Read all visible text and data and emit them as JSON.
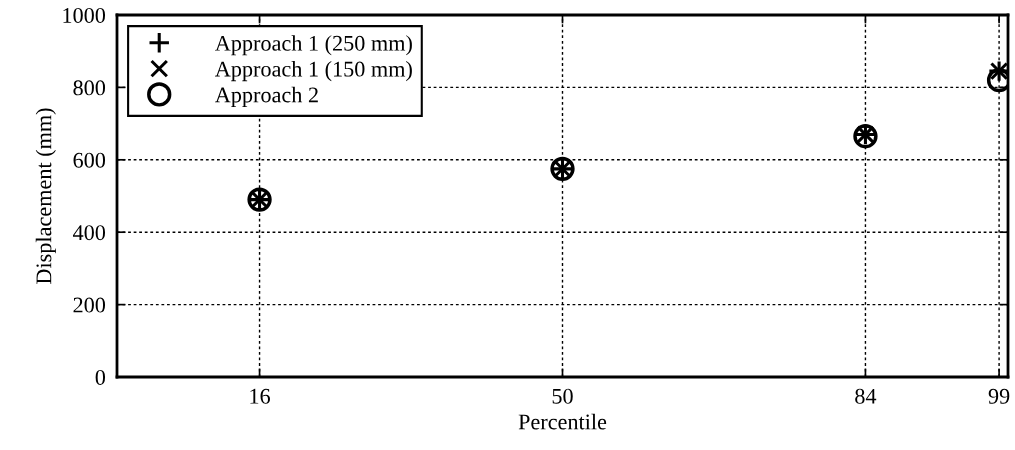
{
  "chart_data": {
    "type": "scatter",
    "xlabel": "Percentile",
    "ylabel": "Displacement (mm)",
    "x": [
      16,
      50,
      84,
      99
    ],
    "series": [
      {
        "name": "Approach 1 (250 mm)",
        "color": "#000000",
        "marker": "cross",
        "values": [
          490,
          575,
          670,
          845
        ]
      },
      {
        "name": "Approach 1 (150 mm)",
        "color": "#000000",
        "marker": "x",
        "values": [
          490,
          575,
          670,
          845
        ]
      },
      {
        "name": "Approach 2",
        "color": "#000000",
        "marker": "circle",
        "values": [
          490,
          575,
          665,
          820
        ]
      }
    ],
    "xlim": [
      0,
      100
    ],
    "xticks": [
      16,
      50,
      84,
      99
    ],
    "ylim": [
      0,
      1000
    ],
    "yticks": [
      0,
      200,
      400,
      600,
      800,
      1000
    ],
    "grid": true,
    "legend": "top left"
  }
}
